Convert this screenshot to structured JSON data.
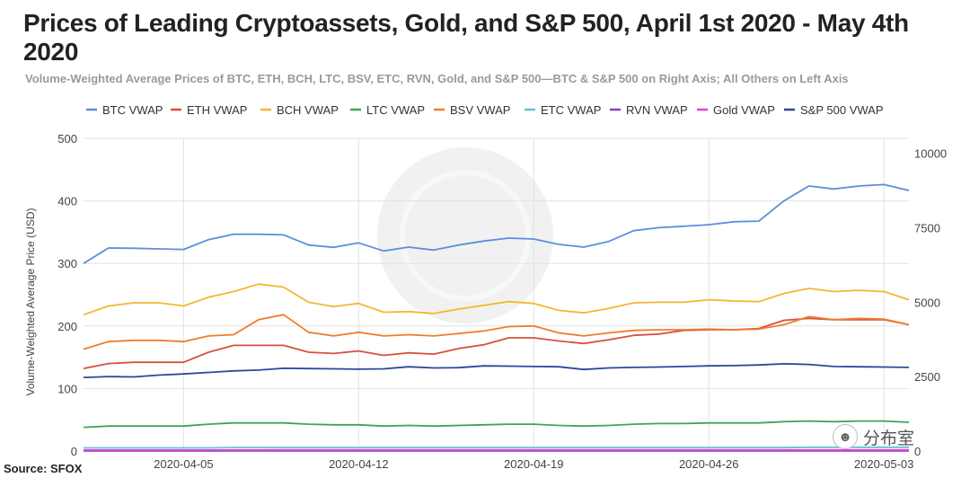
{
  "title": "Prices of Leading Cryptoassets, Gold, and S&P 500, April 1st 2020 - May 4th 2020",
  "subtitle": "Volume-Weighted Average Prices of BTC, ETH, BCH, LTC, BSV, ETC, RVN, Gold, and S&P 500—BTC & S&P 500 on Right Axis; All Others on Left Axis",
  "source": "Source: SFOX",
  "watermark_text": "分布室",
  "watermark_icon": "wechat-icon",
  "chart_data": {
    "type": "line",
    "title": "Prices of Leading Cryptoassets, Gold, and S&P 500, April 1st 2020 - May 4th 2020",
    "ylabel": "Volume-Weighted Average Price (USD)",
    "ylim_left": [
      0,
      500
    ],
    "yticks_left": [
      0,
      100,
      200,
      300,
      400,
      500
    ],
    "ylim_right": [
      0,
      10500
    ],
    "yticks_right": [
      0,
      2500,
      5000,
      7500,
      10000
    ],
    "grid": true,
    "legend": "top",
    "x_dates": [
      "2020-04-01",
      "2020-04-02",
      "2020-04-03",
      "2020-04-04",
      "2020-04-05",
      "2020-04-06",
      "2020-04-07",
      "2020-04-08",
      "2020-04-09",
      "2020-04-10",
      "2020-04-11",
      "2020-04-12",
      "2020-04-13",
      "2020-04-14",
      "2020-04-15",
      "2020-04-16",
      "2020-04-17",
      "2020-04-18",
      "2020-04-19",
      "2020-04-20",
      "2020-04-21",
      "2020-04-22",
      "2020-04-23",
      "2020-04-24",
      "2020-04-25",
      "2020-04-26",
      "2020-04-27",
      "2020-04-28",
      "2020-04-29",
      "2020-04-30",
      "2020-05-01",
      "2020-05-02",
      "2020-05-03",
      "2020-05-04"
    ],
    "x_ticks": [
      "2020-04-05",
      "2020-04-12",
      "2020-04-19",
      "2020-04-26",
      "2020-05-03"
    ],
    "series": [
      {
        "name": "BTC VWAP",
        "color": "#5b8fdc",
        "axis": "right",
        "values": [
          6300,
          6820,
          6810,
          6790,
          6770,
          7100,
          7280,
          7280,
          7260,
          6920,
          6840,
          6990,
          6720,
          6850,
          6750,
          6920,
          7050,
          7150,
          7120,
          6940,
          6850,
          7040,
          7400,
          7500,
          7550,
          7600,
          7700,
          7720,
          8400,
          8900,
          8800,
          8900,
          8950,
          8750
        ]
      },
      {
        "name": "ETH VWAP",
        "color": "#d9503f",
        "axis": "left",
        "values": [
          132,
          140,
          142,
          142,
          142,
          158,
          169,
          169,
          169,
          158,
          156,
          160,
          153,
          157,
          155,
          164,
          170,
          181,
          181,
          176,
          172,
          178,
          185,
          187,
          193,
          194,
          194,
          196,
          209,
          212,
          210,
          210,
          210,
          202
        ]
      },
      {
        "name": "BCH VWAP",
        "color": "#f2b731",
        "axis": "left",
        "values": [
          218,
          232,
          237,
          237,
          232,
          246,
          255,
          267,
          262,
          238,
          231,
          236,
          222,
          223,
          220,
          227,
          233,
          239,
          236,
          225,
          221,
          228,
          237,
          238,
          238,
          242,
          240,
          239,
          252,
          260,
          255,
          257,
          255,
          242
        ]
      },
      {
        "name": "LTC VWAP",
        "color": "#3ea45a",
        "axis": "left",
        "values": [
          38,
          40,
          40,
          40,
          40,
          43,
          45,
          45,
          45,
          43,
          42,
          42,
          40,
          41,
          40,
          41,
          42,
          43,
          43,
          41,
          40,
          41,
          43,
          44,
          44,
          45,
          45,
          45,
          47,
          48,
          47,
          48,
          48,
          46
        ]
      },
      {
        "name": "BSV VWAP",
        "color": "#f07c2a",
        "axis": "left",
        "values": [
          163,
          175,
          177,
          177,
          175,
          184,
          186,
          210,
          218,
          190,
          184,
          190,
          184,
          186,
          184,
          188,
          192,
          199,
          200,
          189,
          184,
          189,
          193,
          194,
          194,
          195,
          194,
          195,
          202,
          215,
          210,
          212,
          211,
          202
        ]
      },
      {
        "name": "ETC VWAP",
        "color": "#5ec1d4",
        "axis": "left",
        "values": [
          5,
          5,
          5,
          5,
          5,
          5,
          5.5,
          5.5,
          5.5,
          5.5,
          5.5,
          5.5,
          5.5,
          5.5,
          5.5,
          5.5,
          5.5,
          5.5,
          5.5,
          5.5,
          5.5,
          5.5,
          5.5,
          5.5,
          5.5,
          5.5,
          5.5,
          5.5,
          5.5,
          6,
          6,
          6,
          6,
          6
        ]
      },
      {
        "name": "RVN VWAP",
        "color": "#8a3fbf",
        "axis": "left",
        "values": [
          0.1,
          0.1,
          0.1,
          0.1,
          0.1,
          0.1,
          0.1,
          0.1,
          0.1,
          0.1,
          0.1,
          0.1,
          0.1,
          0.1,
          0.1,
          0.1,
          0.1,
          0.1,
          0.1,
          0.1,
          0.1,
          0.1,
          0.1,
          0.1,
          0.1,
          0.1,
          0.1,
          0.1,
          0.1,
          0.1,
          0.1,
          0.1,
          0.1,
          0.1
        ]
      },
      {
        "name": "Gold VWAP",
        "color": "#e43fd6",
        "axis": "left",
        "values": [
          1.6,
          1.6,
          1.6,
          1.6,
          1.6,
          1.6,
          1.6,
          1.6,
          1.7,
          1.7,
          1.7,
          1.7,
          1.7,
          1.7,
          1.7,
          1.7,
          1.7,
          1.7,
          1.7,
          1.7,
          1.7,
          1.7,
          1.7,
          1.7,
          1.7,
          1.7,
          1.7,
          1.7,
          1.7,
          1.7,
          1.7,
          1.7,
          1.7,
          1.7
        ]
      },
      {
        "name": "S&P 500 VWAP",
        "color": "#2e4799",
        "axis": "right",
        "values": [
          2470,
          2500,
          2490,
          2550,
          2590,
          2640,
          2690,
          2720,
          2780,
          2770,
          2760,
          2750,
          2760,
          2830,
          2790,
          2800,
          2860,
          2850,
          2840,
          2830,
          2740,
          2790,
          2810,
          2820,
          2840,
          2860,
          2870,
          2890,
          2930,
          2910,
          2840,
          2830,
          2820,
          2810
        ]
      }
    ]
  }
}
